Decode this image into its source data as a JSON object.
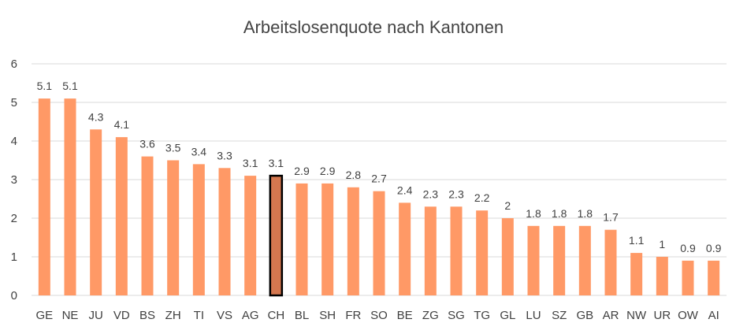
{
  "chart_data": {
    "type": "bar",
    "title": "Arbeitslosenquote nach Kantonen",
    "xlabel": "",
    "ylabel": "",
    "categories": [
      "GE",
      "NE",
      "JU",
      "VD",
      "BS",
      "ZH",
      "TI",
      "VS",
      "AG",
      "CH",
      "BL",
      "SH",
      "FR",
      "SO",
      "BE",
      "ZG",
      "SG",
      "TG",
      "GL",
      "LU",
      "SZ",
      "GB",
      "AR",
      "NW",
      "UR",
      "OW",
      "AI"
    ],
    "values": [
      5.1,
      5.1,
      4.3,
      4.1,
      3.6,
      3.5,
      3.4,
      3.3,
      3.1,
      3.1,
      2.9,
      2.9,
      2.8,
      2.7,
      2.4,
      2.3,
      2.3,
      2.2,
      2,
      1.8,
      1.8,
      1.8,
      1.7,
      1.1,
      1,
      0.9,
      0.9
    ],
    "value_labels": [
      "5.1",
      "5.1",
      "4.3",
      "4.1",
      "3.6",
      "3.5",
      "3.4",
      "3.3",
      "3.1",
      "3.1",
      "2.9",
      "2.9",
      "2.8",
      "2.7",
      "2.4",
      "2.3",
      "2.3",
      "2.2",
      "2",
      "1.8",
      "1.8",
      "1.8",
      "1.7",
      "1.1",
      "1",
      "0.9",
      "0.9"
    ],
    "ylim": [
      0,
      6
    ],
    "yticks": [
      0,
      1,
      2,
      3,
      4,
      5,
      6
    ],
    "grid": true,
    "legend": "none",
    "highlight_category": "CH",
    "colors": {
      "bar": "#FF9966",
      "highlight_bar": "#D4774F",
      "highlight_outline": "#000000",
      "grid": "#D9D9D9",
      "text": "#404040"
    }
  }
}
